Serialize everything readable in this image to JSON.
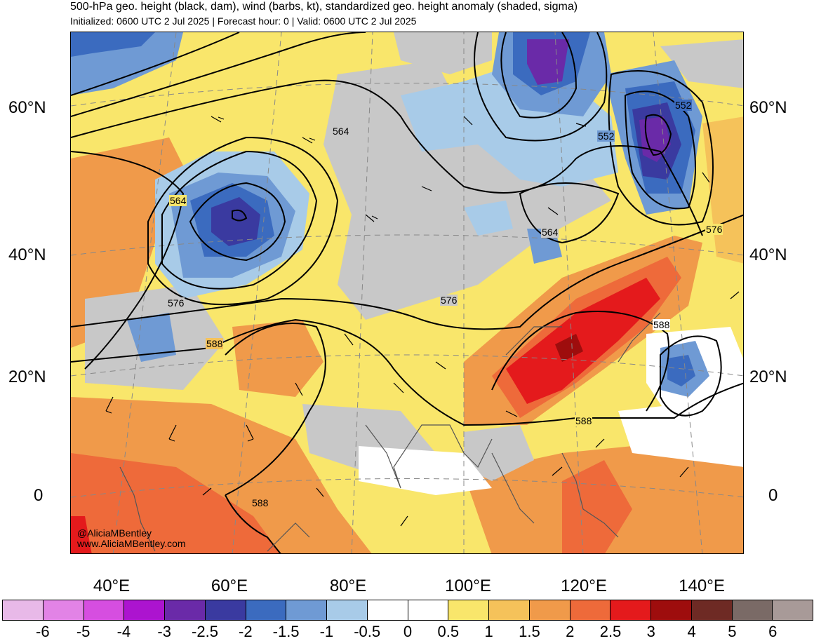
{
  "header": {
    "title": "500-hPa geo. height (black, dam), wind (barbs, kt), standardized geo. height anomaly (shaded, sigma)",
    "subtitle": "Initialized: 0600 UTC 2 Jul 2025 | Forecast hour: 0 | Valid: 0600 UTC 2 Jul 2025"
  },
  "axes": {
    "lat_labels": [
      "60°N",
      "40°N",
      "20°N",
      "0"
    ],
    "lon_labels": [
      "40°E",
      "60°E",
      "80°E",
      "100°E",
      "120°E",
      "140°E"
    ]
  },
  "contour_labels": {
    "h564_west": "564",
    "h564_central": "564",
    "h564_east": "564",
    "h552_upper": "552",
    "h552_lower": "552",
    "h576_west": "576",
    "h576_central": "576",
    "h576_east": "576",
    "h588_west": "588",
    "h588_south": "588",
    "h588_east": "588",
    "h588_pacific": "588"
  },
  "credits": {
    "handle": "@AliciaMBentley",
    "website": "www.AliciaMBentley.com"
  },
  "colorbar": {
    "labels": [
      "-6",
      "-5",
      "-4",
      "-3",
      "-2.5",
      "-2",
      "-1.5",
      "-1",
      "-0.5",
      "0",
      "0.5",
      "1",
      "1.5",
      "2",
      "2.5",
      "3",
      "4",
      "5",
      "6"
    ],
    "colors": [
      "#e8b9e8",
      "#e283e6",
      "#d64ee0",
      "#ac14cf",
      "#6a2aa8",
      "#3a3aa0",
      "#3b6bbf",
      "#6f9ad4",
      "#a8cbe8",
      "#ffffff",
      "#ffffff",
      "#f9e66b",
      "#f5c25a",
      "#f09a4a",
      "#ee6a3a",
      "#e41a1c",
      "#9e0d0d",
      "#6e2a24",
      "#7a6a66",
      "#a89a98"
    ]
  }
}
